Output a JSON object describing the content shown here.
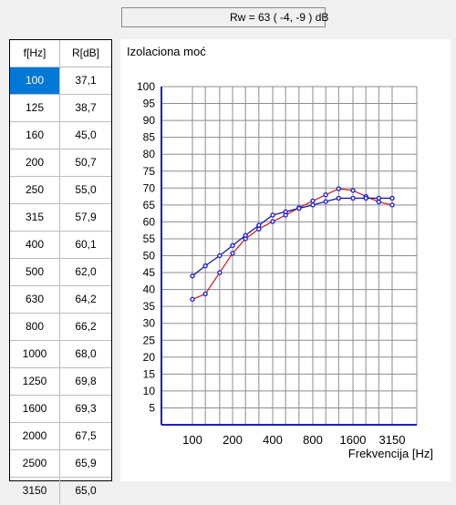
{
  "rw_label": "Rw = 63 ( -4, -9 ) dB",
  "table": {
    "headers": [
      "f[Hz]",
      "R[dB]"
    ],
    "rows": [
      [
        "100",
        "37,1"
      ],
      [
        "125",
        "38,7"
      ],
      [
        "160",
        "45,0"
      ],
      [
        "200",
        "50,7"
      ],
      [
        "250",
        "55,0"
      ],
      [
        "315",
        "57,9"
      ],
      [
        "400",
        "60,1"
      ],
      [
        "500",
        "62,0"
      ],
      [
        "630",
        "64,2"
      ],
      [
        "800",
        "66,2"
      ],
      [
        "1000",
        "68,0"
      ],
      [
        "1250",
        "69,8"
      ],
      [
        "1600",
        "69,3"
      ],
      [
        "2000",
        "67,5"
      ],
      [
        "2500",
        "65,9"
      ],
      [
        "3150",
        "65,0"
      ]
    ],
    "selected_row": 0
  },
  "colors": {
    "selection": "#0078d7",
    "axis": "#1c1cc8",
    "grid": "#8c8c8c",
    "measured_line": "#d32424",
    "reference_line": "#1a1a9a",
    "marker": "#2424d8"
  },
  "chart_data": {
    "type": "line",
    "title": "Izolaciona moć",
    "xlabel": "Frekvencija [Hz]",
    "ylabel": "",
    "x_scale": "log",
    "x": [
      100,
      125,
      160,
      200,
      250,
      315,
      400,
      500,
      630,
      800,
      1000,
      1250,
      1600,
      2000,
      2500,
      3150
    ],
    "x_tick_labels": [
      "100",
      "200",
      "400",
      "800",
      "1600",
      "3150"
    ],
    "ylim": [
      0,
      100
    ],
    "y_ticks": [
      5,
      10,
      15,
      20,
      25,
      30,
      35,
      40,
      45,
      50,
      55,
      60,
      65,
      70,
      75,
      80,
      85,
      90,
      95,
      100
    ],
    "grid": true,
    "series": [
      {
        "values": [
          37.1,
          38.7,
          45.0,
          50.7,
          55.0,
          57.9,
          60.1,
          62.0,
          64.2,
          66.2,
          68.0,
          69.8,
          69.3,
          67.5,
          65.9,
          65.0
        ]
      },
      {
        "values": [
          44,
          47,
          50,
          53,
          56,
          59,
          62,
          63,
          64,
          65,
          66,
          67,
          67,
          67,
          67,
          67
        ]
      }
    ]
  }
}
